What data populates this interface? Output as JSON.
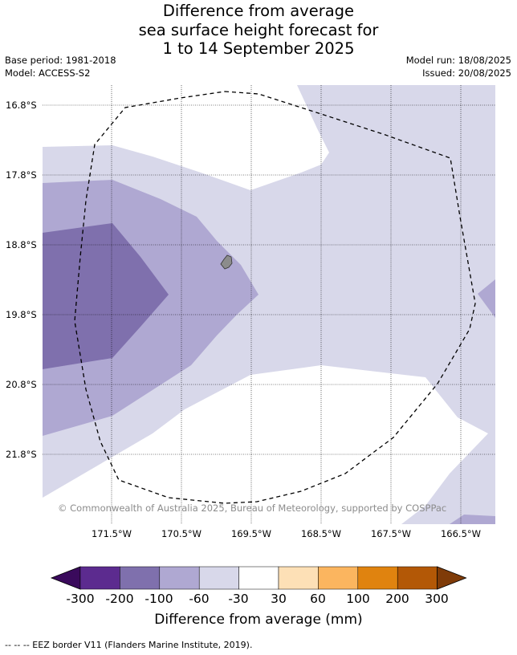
{
  "title": {
    "line1": "Difference from average",
    "line2": "sea surface height forecast for",
    "line3": "1 to 14 September 2025"
  },
  "meta": {
    "base_period": "Base period: 1981-2018",
    "model": "Model: ACCESS-S2",
    "model_run": "Model run: 18/08/2025",
    "issued": "Issued: 20/08/2025"
  },
  "map": {
    "lat_labels": [
      "16.8°S",
      "17.8°S",
      "18.8°S",
      "19.8°S",
      "20.8°S",
      "21.8°S"
    ],
    "lon_labels": [
      "171.5°W",
      "170.5°W",
      "169.5°W",
      "168.5°W",
      "167.5°W",
      "166.5°W"
    ],
    "copyright": "© Commonwealth of Australia 2025, Bureau of Meteorology, supported by COSPPac",
    "colors": {
      "level_-300_-200": "#5c2b8f",
      "level_-200_-100": "#7f70ad",
      "level_-100_-60": "#afa8d2",
      "level_-60_-30": "#d8d8ea",
      "level_-30_30": "#ffffff",
      "island": "#8c8c8c",
      "eez_border": "#000000"
    }
  },
  "colorbar": {
    "ticks": [
      "-300",
      "-200",
      "-100",
      "-60",
      "-30",
      "30",
      "60",
      "100",
      "200",
      "300"
    ],
    "colors": [
      "#3a0a5c",
      "#5c2b8f",
      "#7f70ad",
      "#afa8d2",
      "#d8d8ea",
      "#ffffff",
      "#fde0b6",
      "#fbb55f",
      "#e0830f",
      "#b35806",
      "#7f3b08"
    ],
    "label": "Difference from average (mm)"
  },
  "footnote": "--  --  -- EEZ border V11 (Flanders Marine Institute, 2019)."
}
